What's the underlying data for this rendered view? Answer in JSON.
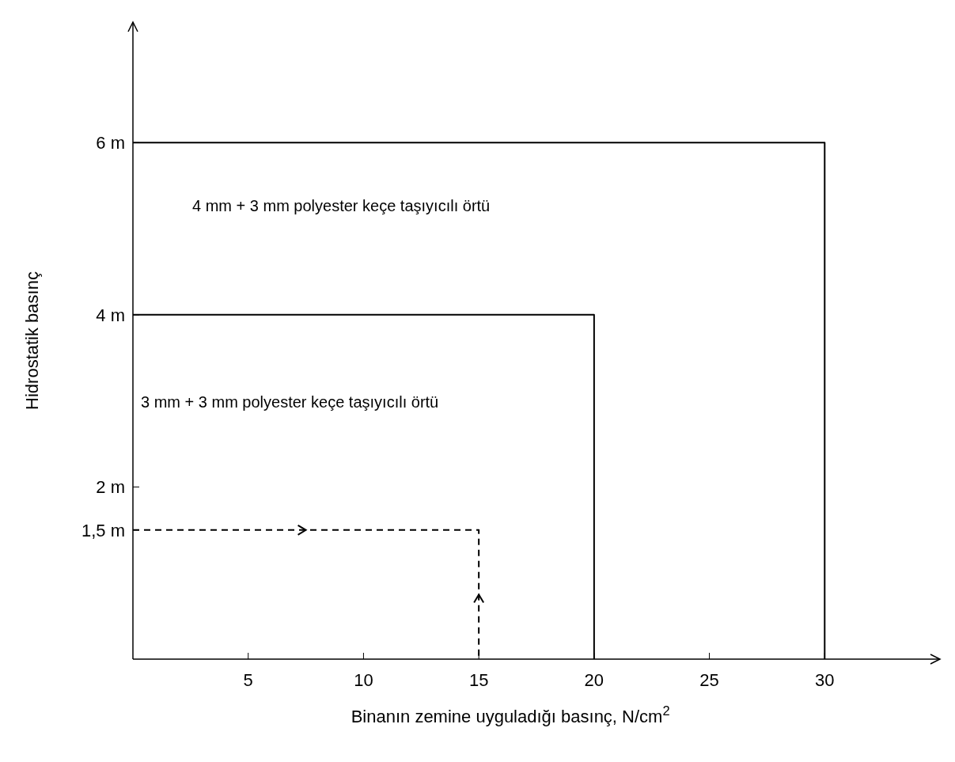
{
  "chart_data": {
    "type": "line",
    "xlabel": "Binanın zemine uyguladığı basınç, N/cm$^{2}$",
    "ylabel": "Hidrostatik basınç",
    "xlim": [
      0,
      35
    ],
    "ylim": [
      0,
      7.4
    ],
    "xticks": [
      5,
      10,
      15,
      20,
      25,
      30
    ],
    "yticks": [
      {
        "value": 1.5,
        "label": "1,5 m"
      },
      {
        "value": 2,
        "label": "2 m"
      },
      {
        "value": 4,
        "label": "4 m"
      },
      {
        "value": 6,
        "label": "6 m"
      }
    ],
    "series": [
      {
        "color": "#000000",
        "x": [
          0,
          20,
          20
        ],
        "values": [
          4,
          4,
          0
        ]
      },
      {
        "color": "#000000",
        "x": [
          0,
          30,
          30
        ],
        "values": [
          6,
          6,
          0
        ]
      },
      {
        "color": "#000000",
        "x": [
          0,
          15,
          15
        ],
        "values": [
          1.5,
          1.5,
          0
        ],
        "line_style": "dashed"
      }
    ],
    "annotations": [
      "4 mm + 3 mm polyester keçe taşıyıcılı örtü",
      "3 mm + 3 mm polyester keçe taşıyıcılı örtü"
    ],
    "grid": false,
    "marker": "none"
  }
}
